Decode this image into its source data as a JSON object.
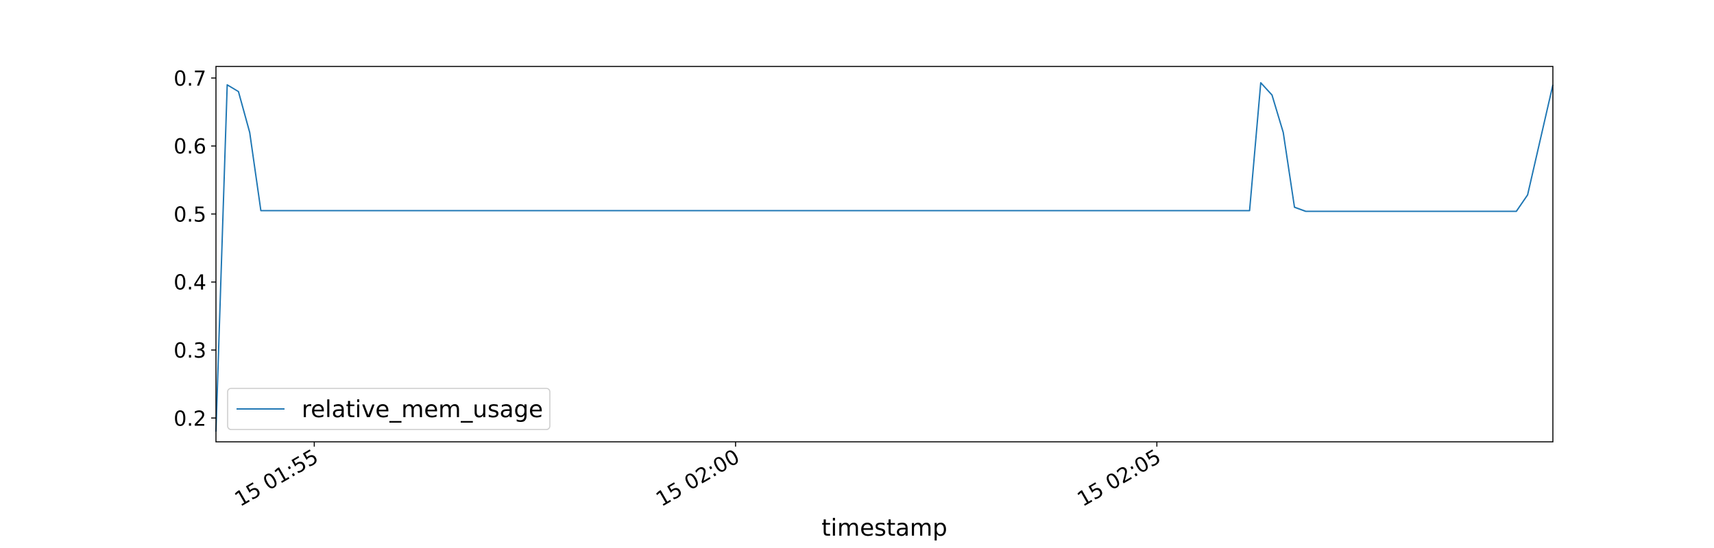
{
  "chart_data": {
    "type": "line",
    "title": "",
    "xlabel": "timestamp",
    "ylabel": "",
    "x_axis_kind": "time",
    "xlim": [
      "01:53:50",
      "02:09:42"
    ],
    "ylim": [
      0.165,
      0.717
    ],
    "yticks": [
      0.2,
      0.3,
      0.4,
      0.5,
      0.6,
      0.7
    ],
    "ytick_labels": [
      "0.2",
      "0.3",
      "0.4",
      "0.5",
      "0.6",
      "0.7"
    ],
    "xticks": [
      "01:55:00",
      "02:00:00",
      "02:05:00"
    ],
    "xtick_labels": [
      "15 01:55",
      "15 02:00",
      "15 02:05"
    ],
    "xtick_rotation": "30 degrees",
    "grid": false,
    "legend_position": "lower-left",
    "series": [
      {
        "name": "relative_mem_usage",
        "color": "#1f77b4",
        "x": [
          "01:53:50",
          "01:53:58",
          "01:54:06",
          "01:54:14",
          "01:54:22",
          "01:55:00",
          "01:56:00",
          "01:57:00",
          "01:58:00",
          "01:59:00",
          "02:00:00",
          "02:01:00",
          "02:02:00",
          "02:03:00",
          "02:04:00",
          "02:05:00",
          "02:06:00",
          "02:06:06",
          "02:06:14",
          "02:06:22",
          "02:06:30",
          "02:06:38",
          "02:06:46",
          "02:07:00",
          "02:08:00",
          "02:09:00",
          "02:09:16",
          "02:09:24",
          "02:09:42"
        ],
        "y": [
          0.18,
          0.69,
          0.68,
          0.62,
          0.505,
          0.505,
          0.505,
          0.505,
          0.505,
          0.505,
          0.505,
          0.505,
          0.505,
          0.505,
          0.505,
          0.505,
          0.505,
          0.505,
          0.693,
          0.675,
          0.62,
          0.51,
          0.504,
          0.504,
          0.504,
          0.504,
          0.504,
          0.528,
          0.69
        ]
      }
    ]
  }
}
